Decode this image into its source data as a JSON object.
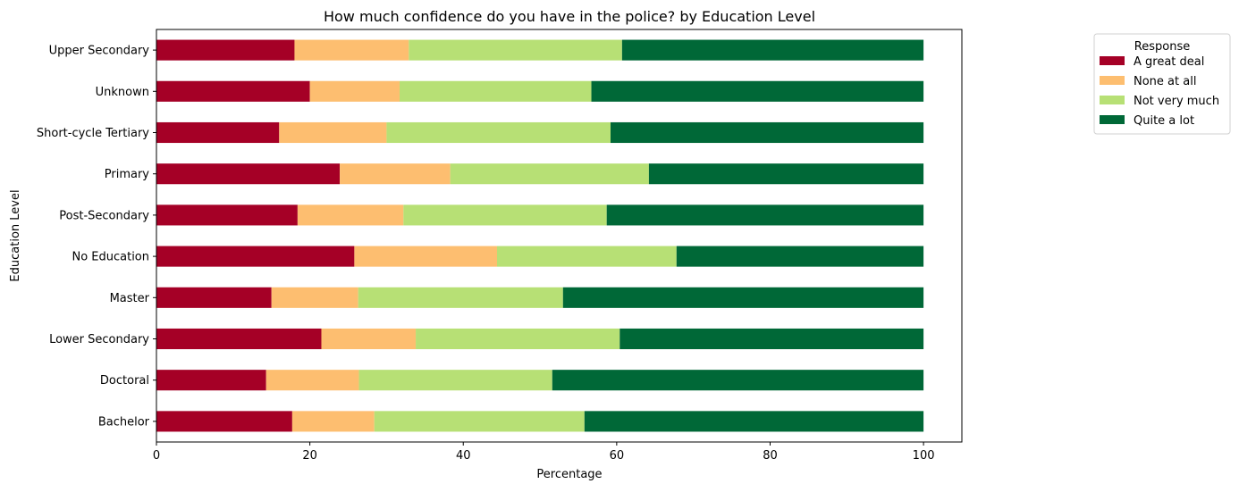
{
  "chart_data": {
    "type": "bar",
    "orientation": "horizontal",
    "stacked": true,
    "title": "How much confidence do you have in the police? by Education Level",
    "xlabel": "Percentage",
    "ylabel": "Education Level",
    "xlim": [
      0,
      105
    ],
    "xticks": [
      0,
      20,
      40,
      60,
      80,
      100
    ],
    "grid": false,
    "legend": {
      "title": "Response",
      "placement": "upper right, outside plot area"
    },
    "categories": [
      "Bachelor",
      "Doctoral",
      "Lower Secondary",
      "Master",
      "No Education",
      "Post-Secondary",
      "Primary",
      "Short-cycle Tertiary",
      "Unknown",
      "Upper Secondary"
    ],
    "series": [
      {
        "name": "A great deal",
        "color": "#a50026",
        "values": [
          17.7,
          14.3,
          21.5,
          15.0,
          25.8,
          18.4,
          23.9,
          16.0,
          20.0,
          18.0
        ]
      },
      {
        "name": "None at all",
        "color": "#fdbe70",
        "values": [
          10.7,
          12.1,
          12.3,
          11.3,
          18.6,
          13.8,
          14.4,
          14.0,
          11.7,
          14.9
        ]
      },
      {
        "name": "Not very much",
        "color": "#b7e075",
        "values": [
          27.4,
          25.2,
          26.6,
          26.7,
          23.4,
          26.5,
          25.9,
          29.2,
          25.0,
          27.8
        ]
      },
      {
        "name": "Quite a lot",
        "color": "#006837",
        "values": [
          44.2,
          48.4,
          39.6,
          47.0,
          32.2,
          41.3,
          35.8,
          40.8,
          43.3,
          39.3
        ]
      }
    ]
  }
}
